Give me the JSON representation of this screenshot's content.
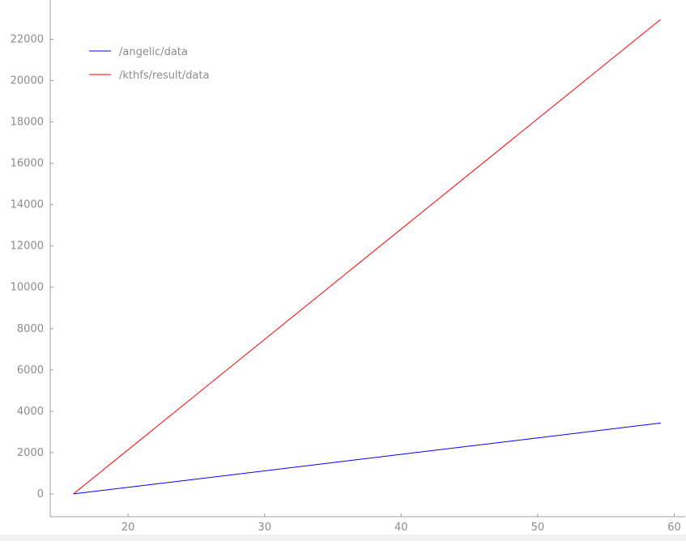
{
  "chart_data": {
    "type": "line",
    "title": "",
    "xlabel": "",
    "ylabel": "",
    "xlim": [
      14.3,
      60.8
    ],
    "ylim": [
      -1100,
      23900
    ],
    "x_ticks": [
      20,
      30,
      40,
      50,
      60
    ],
    "y_ticks": [
      0,
      2000,
      4000,
      6000,
      8000,
      10000,
      12000,
      14000,
      16000,
      18000,
      20000,
      22000
    ],
    "legend_position": "top-left",
    "grid": false,
    "series": [
      {
        "name": "/angelic/data",
        "color": "#0000ff",
        "points": [
          [
            16,
            0
          ],
          [
            59,
            3430
          ]
        ]
      },
      {
        "name": "/kthfs/result/data",
        "color": "#ff0000",
        "points": [
          [
            16,
            0
          ],
          [
            59,
            22960
          ]
        ]
      }
    ]
  }
}
